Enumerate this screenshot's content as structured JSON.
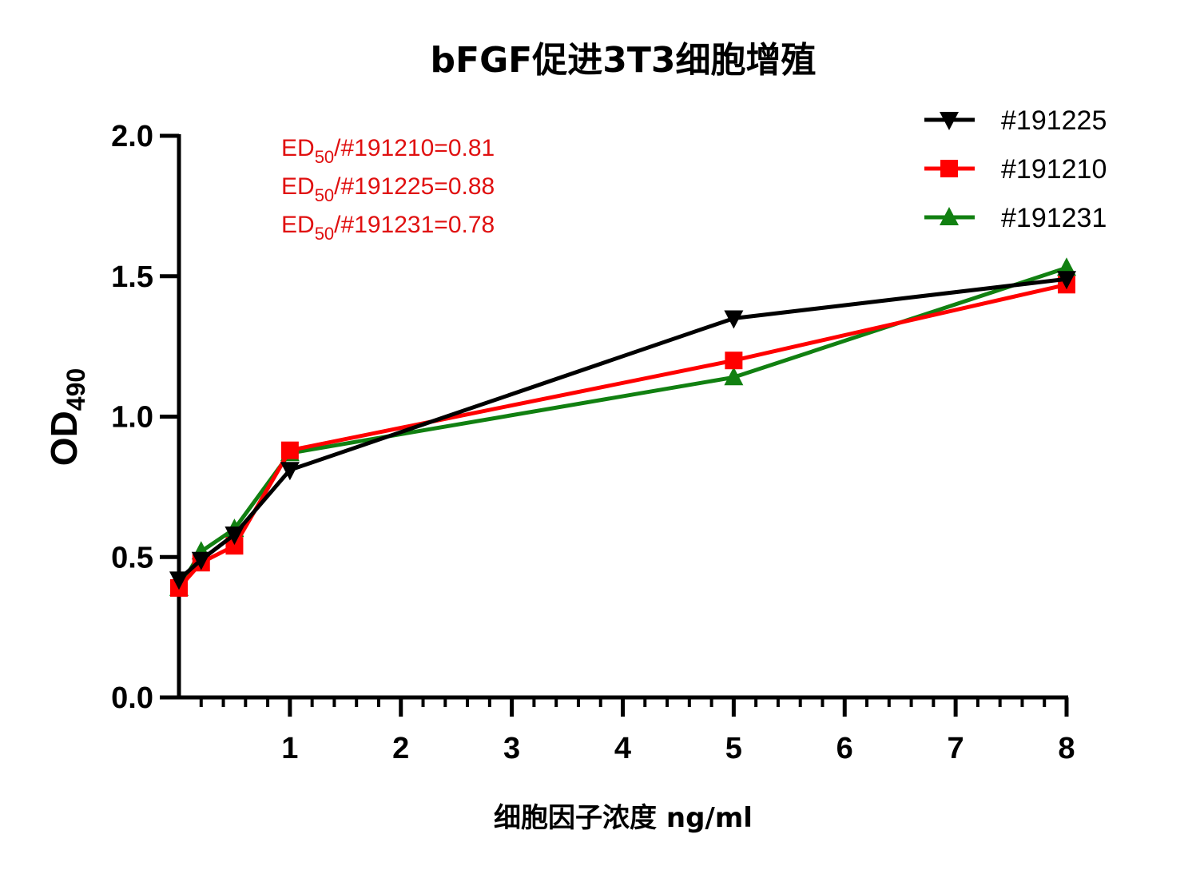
{
  "chart_data": {
    "type": "line",
    "title": "bFGF促进3T3细胞增殖",
    "xlabel": "细胞因子浓度 ng/ml",
    "ylabel": {
      "main": "OD",
      "sub": "490"
    },
    "xlim": [
      0,
      8
    ],
    "ylim": [
      0,
      2.0
    ],
    "x_ticks": [
      "1",
      "2",
      "3",
      "4",
      "5",
      "6",
      "7",
      "8"
    ],
    "y_ticks": [
      "0.0",
      "0.5",
      "1.0",
      "1.5",
      "2.0"
    ],
    "x": [
      0,
      0.2,
      0.5,
      1,
      5,
      8
    ],
    "series": [
      {
        "name": "#191225",
        "color": "#000000",
        "marker": "triangle-down",
        "values": [
          0.42,
          0.49,
          0.58,
          0.81,
          1.35,
          1.49
        ]
      },
      {
        "name": "#191210",
        "color": "#ff0000",
        "marker": "square",
        "values": [
          0.39,
          0.48,
          0.54,
          0.88,
          1.2,
          1.47
        ]
      },
      {
        "name": "#191231",
        "color": "#118011",
        "marker": "triangle-up",
        "values": [
          0.39,
          0.52,
          0.6,
          0.87,
          1.14,
          1.53
        ]
      }
    ],
    "annotations": [
      {
        "prefix": "ED",
        "sub": "50",
        "text": "/#191210=0.81"
      },
      {
        "prefix": "ED",
        "sub": "50",
        "text": "/#191225=0.88"
      },
      {
        "prefix": "ED",
        "sub": "50",
        "text": "/#191231=0.78"
      }
    ],
    "annotation_color": "#e01010",
    "legend_position": "top-right",
    "grid": false
  }
}
